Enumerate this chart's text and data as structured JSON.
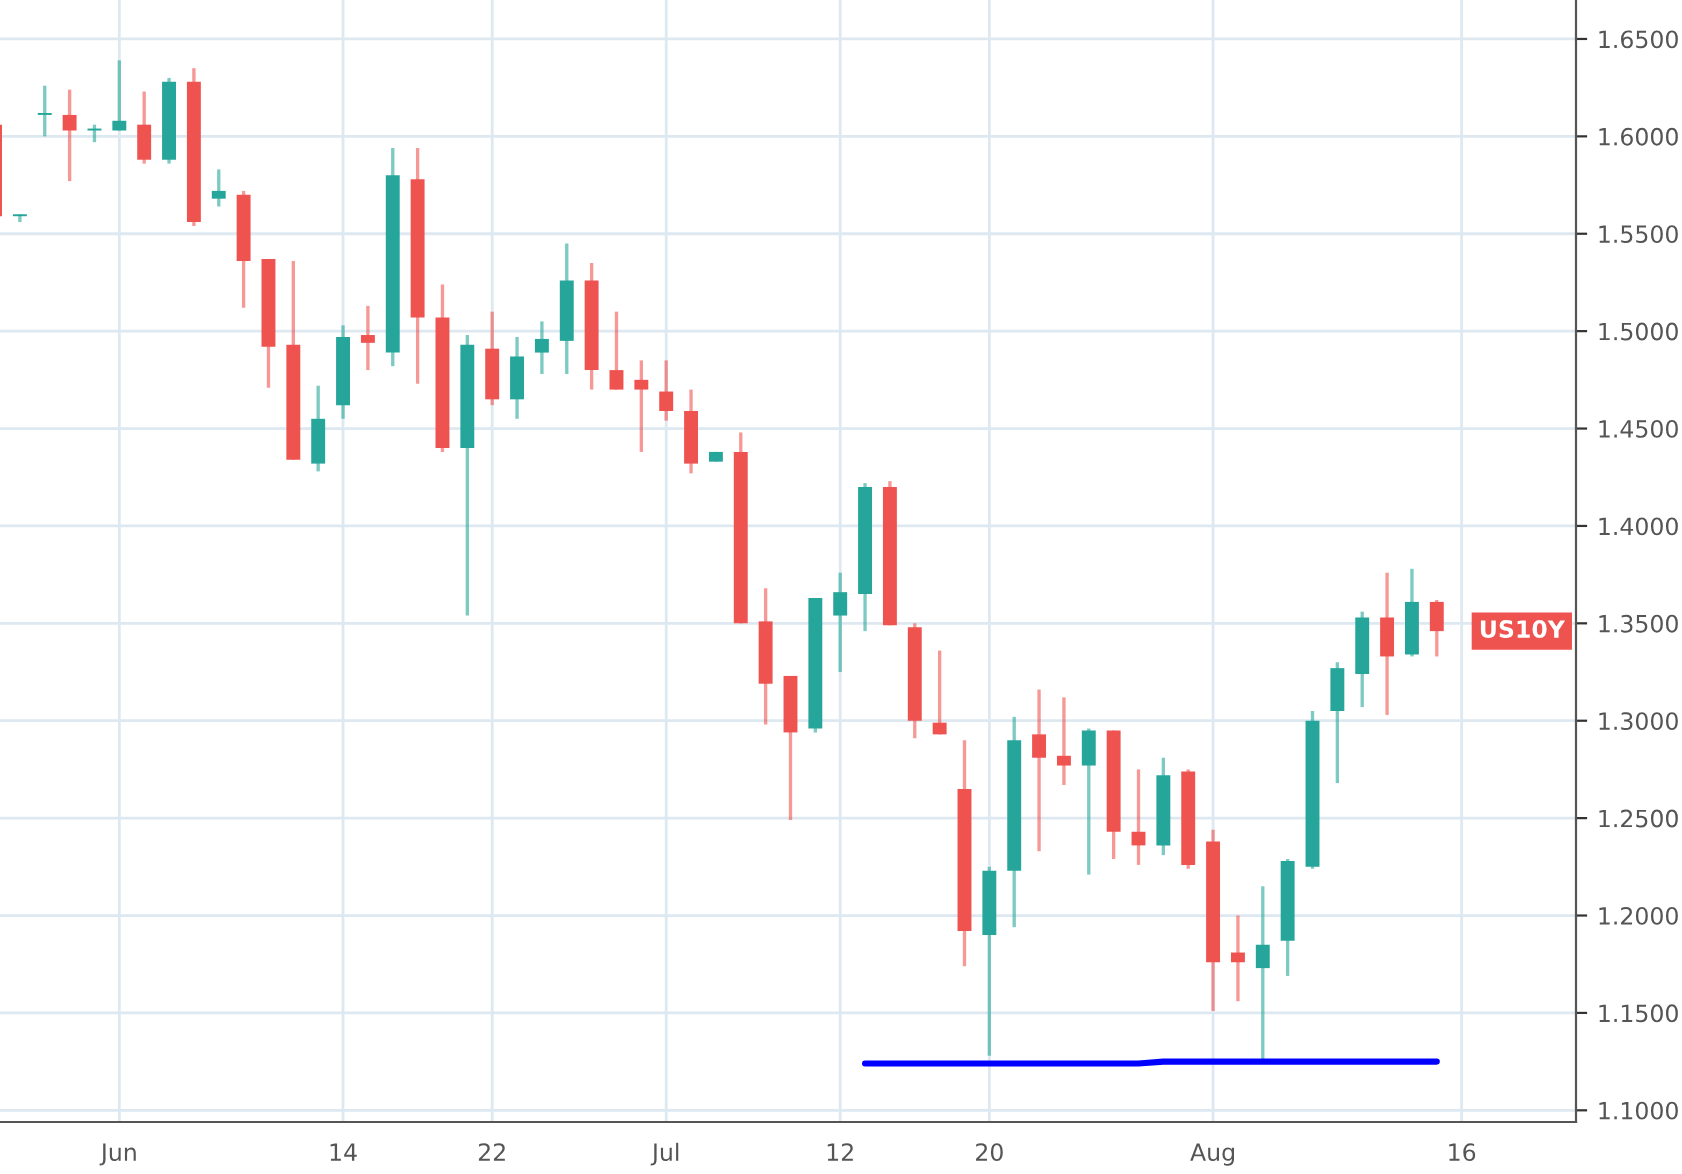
{
  "chart_data": {
    "type": "candlestick",
    "categories": [
      null,
      null,
      null,
      null,
      null,
      "Jun",
      null,
      null,
      null,
      null,
      null,
      null,
      null,
      null,
      "14",
      null,
      null,
      null,
      null,
      null,
      "22",
      null,
      null,
      null,
      null,
      null,
      null,
      "Jul",
      null,
      null,
      null,
      null,
      null,
      null,
      "12",
      null,
      null,
      null,
      null,
      null,
      "20",
      null,
      null,
      null,
      null,
      null,
      null,
      null,
      null,
      "Aug",
      null,
      null,
      null,
      null,
      null,
      null,
      null,
      null,
      null,
      "16",
      null,
      null,
      null,
      null
    ],
    "ohlc": [
      [
        1.606,
        1.606,
        1.559,
        1.559
      ],
      [
        1.559,
        1.56,
        1.556,
        1.56
      ],
      [
        1.611,
        1.626,
        1.6,
        1.612
      ],
      [
        1.611,
        1.624,
        1.577,
        1.603
      ],
      [
        1.603,
        1.606,
        1.597,
        1.604
      ],
      [
        1.603,
        1.639,
        1.603,
        1.608
      ],
      [
        1.606,
        1.623,
        1.586,
        1.588
      ],
      [
        1.588,
        1.63,
        1.586,
        1.628
      ],
      [
        1.628,
        1.635,
        1.554,
        1.556
      ],
      [
        1.568,
        1.583,
        1.564,
        1.572
      ],
      [
        1.57,
        1.572,
        1.512,
        1.536
      ],
      [
        1.537,
        1.537,
        1.471,
        1.492
      ],
      [
        1.493,
        1.536,
        1.434,
        1.434
      ],
      [
        1.432,
        1.472,
        1.428,
        1.455
      ],
      [
        1.462,
        1.503,
        1.455,
        1.497
      ],
      [
        1.498,
        1.513,
        1.48,
        1.494
      ],
      [
        1.489,
        1.594,
        1.482,
        1.58
      ],
      [
        1.578,
        1.594,
        1.473,
        1.507
      ],
      [
        1.507,
        1.524,
        1.438,
        1.44
      ],
      [
        1.44,
        1.498,
        1.354,
        1.493
      ],
      [
        1.491,
        1.51,
        1.462,
        1.465
      ],
      [
        1.465,
        1.497,
        1.455,
        1.487
      ],
      [
        1.489,
        1.505,
        1.478,
        1.496
      ],
      [
        1.495,
        1.545,
        1.478,
        1.526
      ],
      [
        1.526,
        1.535,
        1.47,
        1.48
      ],
      [
        1.48,
        1.51,
        1.47,
        1.47
      ],
      [
        1.475,
        1.485,
        1.438,
        1.47
      ],
      [
        1.469,
        1.485,
        1.454,
        1.459
      ],
      [
        1.459,
        1.47,
        1.427,
        1.432
      ],
      [
        1.433,
        1.438,
        1.433,
        1.438
      ],
      [
        1.438,
        1.448,
        1.35,
        1.35
      ],
      [
        1.351,
        1.368,
        1.298,
        1.319
      ],
      [
        1.323,
        1.323,
        1.249,
        1.294
      ],
      [
        1.296,
        1.363,
        1.294,
        1.363
      ],
      [
        1.354,
        1.376,
        1.325,
        1.366
      ],
      [
        1.365,
        1.422,
        1.346,
        1.42
      ],
      [
        1.42,
        1.423,
        1.349,
        1.349
      ],
      [
        1.348,
        1.35,
        1.291,
        1.3
      ],
      [
        1.299,
        1.336,
        1.293,
        1.293
      ],
      [
        1.265,
        1.29,
        1.174,
        1.192
      ],
      [
        1.19,
        1.225,
        1.128,
        1.223
      ],
      [
        1.223,
        1.302,
        1.194,
        1.29
      ],
      [
        1.293,
        1.316,
        1.233,
        1.281
      ],
      [
        1.282,
        1.312,
        1.267,
        1.277
      ],
      [
        1.277,
        1.296,
        1.221,
        1.295
      ],
      [
        1.295,
        1.295,
        1.229,
        1.243
      ],
      [
        1.243,
        1.275,
        1.226,
        1.236
      ],
      [
        1.236,
        1.281,
        1.231,
        1.272
      ],
      [
        1.274,
        1.275,
        1.224,
        1.226
      ],
      [
        1.238,
        1.244,
        1.151,
        1.176
      ],
      [
        1.181,
        1.2,
        1.156,
        1.176
      ],
      [
        1.173,
        1.215,
        1.126,
        1.185
      ],
      [
        1.187,
        1.229,
        1.169,
        1.228
      ],
      [
        1.225,
        1.305,
        1.224,
        1.3
      ],
      [
        1.305,
        1.33,
        1.268,
        1.327
      ],
      [
        1.324,
        1.356,
        1.307,
        1.353
      ],
      [
        1.353,
        1.376,
        1.303,
        1.333
      ],
      [
        1.334,
        1.378,
        1.333,
        1.361
      ],
      [
        1.361,
        1.362,
        1.333,
        1.346
      ],
      null,
      null,
      null,
      null,
      null
    ],
    "colors": [
      "#ef5350",
      "#26a69a",
      "#26a69a",
      "#ef5350",
      "#26a69a",
      "#26a69a",
      "#ef5350",
      "#26a69a",
      "#ef5350",
      "#26a69a",
      "#ef5350",
      "#ef5350",
      "#ef5350",
      "#26a69a",
      "#26a69a",
      "#ef5350",
      "#26a69a",
      "#ef5350",
      "#ef5350",
      "#26a69a",
      "#ef5350",
      "#26a69a",
      "#26a69a",
      "#26a69a",
      "#ef5350",
      "#ef5350",
      "#ef5350",
      "#ef5350",
      "#ef5350",
      "#26a69a",
      "#ef5350",
      "#ef5350",
      "#ef5350",
      "#26a69a",
      "#26a69a",
      "#26a69a",
      "#ef5350",
      "#ef5350",
      "#ef5350",
      "#ef5350",
      "#26a69a",
      "#26a69a",
      "#ef5350",
      "#ef5350",
      "#26a69a",
      "#ef5350",
      "#ef5350",
      "#26a69a",
      "#ef5350",
      "#ef5350",
      "#ef5350",
      "#26a69a",
      "#26a69a",
      "#26a69a",
      "#26a69a",
      "#26a69a",
      "#ef5350",
      "#26a69a",
      "#ef5350",
      null,
      null,
      null,
      null,
      null
    ],
    "series": [
      {
        "type": "line",
        "color": "#0000ff",
        "values": [
          null,
          null,
          null,
          null,
          null,
          null,
          null,
          null,
          null,
          null,
          null,
          null,
          null,
          null,
          null,
          null,
          null,
          null,
          null,
          null,
          null,
          null,
          null,
          null,
          null,
          null,
          null,
          null,
          null,
          null,
          null,
          null,
          null,
          null,
          null,
          1.124,
          1.124,
          1.124,
          1.124,
          1.124,
          1.124,
          1.124,
          1.124,
          1.124,
          1.124,
          1.124,
          1.124,
          1.125,
          1.125,
          1.125,
          1.125,
          1.125,
          1.125,
          1.125,
          1.125,
          1.125,
          1.125,
          1.125,
          1.125,
          null,
          null,
          null,
          null,
          null
        ]
      }
    ],
    "ylim": [
      1.094,
      1.67
    ],
    "yticks": [
      {
        "value": 1.1,
        "label": "1.1000"
      },
      {
        "value": 1.15,
        "label": "1.1500"
      },
      {
        "value": 1.2,
        "label": "1.2000"
      },
      {
        "value": 1.25,
        "label": "1.2500"
      },
      {
        "value": 1.3,
        "label": "1.3000"
      },
      {
        "value": 1.35,
        "label": "1.3500"
      },
      {
        "value": 1.4,
        "label": "1.4000"
      },
      {
        "value": 1.45,
        "label": "1.4500"
      },
      {
        "value": 1.5,
        "label": "1.5000"
      },
      {
        "value": 1.55,
        "label": "1.5500"
      },
      {
        "value": 1.6,
        "label": "1.6000"
      },
      {
        "value": 1.65,
        "label": "1.6500"
      }
    ],
    "grid": true,
    "annotations": [
      "US10Y"
    ]
  }
}
